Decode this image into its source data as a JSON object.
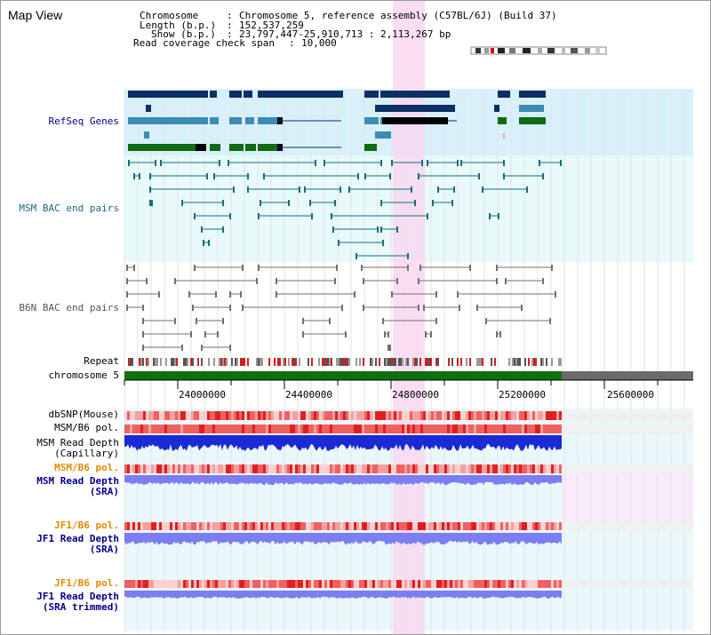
{
  "view_title": "Map View",
  "info": {
    "chromosome_key": "Chromosome",
    "chromosome_val": "Chromosome 5, reference assembly (C57BL/6J) (Build 37)",
    "length_key": "Length (b.p.)",
    "length_val": "152,537,259",
    "show_key": "Show (b.p.)",
    "show_val": "23,797,447-25,910,713 : 2,113,267 bp",
    "coverage_key": "Read coverage check span",
    "coverage_val": "10,000"
  },
  "tracks": {
    "refseq": "RefSeq Genes",
    "msm_bac": "MSM BAC end pairs",
    "b6n_bac": "B6N BAC end pairs",
    "repeat": "Repeat",
    "chromosome": "chromosome 5",
    "dbsnp": "dbSNP(Mouse)",
    "msm_b6_pol_1": "MSM/B6 pol.",
    "msm_depth_cap_1": "MSM Read Depth",
    "msm_depth_cap_2": "(Capillary)",
    "msm_b6_pol_2": "MSM/B6 pol.",
    "msm_depth_sra_1": "MSM Read Depth",
    "msm_depth_sra_2": "(SRA)",
    "jf1_b6_pol_1": "JF1/B6 pol.",
    "jf1_depth_sra_1": "JF1 Read Depth",
    "jf1_depth_sra_2": "(SRA)",
    "jf1_b6_pol_2": "JF1/B6 pol.",
    "jf1_depth_trim_1": "JF1 Read Depth",
    "jf1_depth_trim_2": "(SRA trimmed)"
  },
  "axis_ticks": [
    "24000000",
    "24400000",
    "24800000",
    "25200000",
    "25600000"
  ],
  "colors": {
    "refseq_bg": "#d8f0fa",
    "bac_bg": "#e8fafa",
    "highlight": "#f8d8f0",
    "refseq_dark": "#0c2f66",
    "refseq_mid": "#3d8cb3",
    "refseq_green": "#0f6b14",
    "bac_teal": "#1b6a7f",
    "bac_gray": "#707070",
    "chromosome_green": "#0f7010",
    "label_blue": "#00008b",
    "label_orange": "#e08a00"
  }
}
